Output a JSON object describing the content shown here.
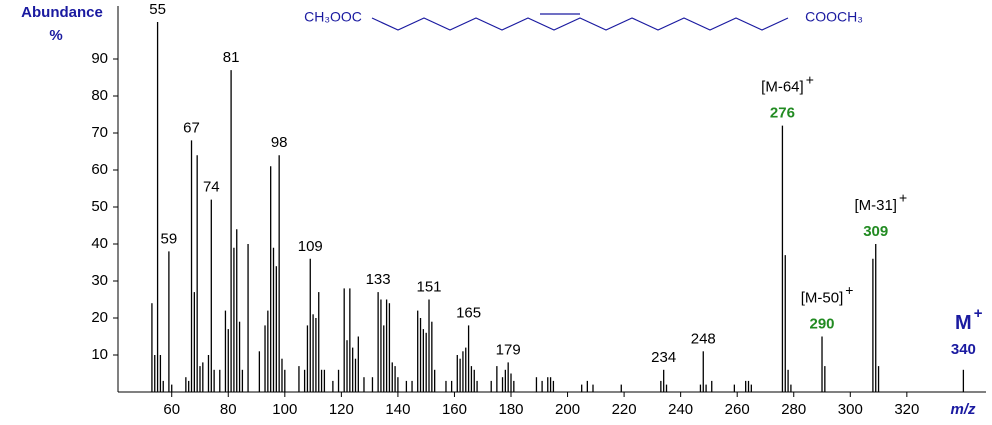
{
  "chart_data": {
    "type": "spectrum",
    "y_label": "Abundance",
    "y_unit": "%",
    "x_label": "m/z",
    "formula_left": "CH₃OOC",
    "formula_right": "COOCH₃",
    "x": [
      53,
      54,
      55,
      56,
      57,
      59,
      60,
      65,
      66,
      67,
      68,
      69,
      70,
      71,
      73,
      74,
      75,
      77,
      79,
      80,
      81,
      82,
      83,
      84,
      85,
      87,
      91,
      93,
      94,
      95,
      96,
      97,
      98,
      99,
      100,
      105,
      107,
      108,
      109,
      110,
      111,
      112,
      113,
      114,
      117,
      119,
      121,
      122,
      123,
      124,
      125,
      126,
      128,
      131,
      133,
      134,
      135,
      136,
      137,
      138,
      139,
      140,
      143,
      145,
      147,
      148,
      149,
      150,
      151,
      152,
      153,
      157,
      159,
      161,
      162,
      163,
      164,
      165,
      166,
      167,
      168,
      173,
      175,
      177,
      178,
      179,
      180,
      181,
      189,
      191,
      193,
      194,
      195,
      205,
      207,
      209,
      219,
      233,
      234,
      235,
      247,
      248,
      249,
      251,
      259,
      263,
      264,
      265,
      276,
      277,
      278,
      279,
      290,
      291,
      308,
      309,
      310,
      340
    ],
    "values": [
      24,
      10,
      100,
      10,
      3,
      38,
      2,
      4,
      3,
      68,
      27,
      64,
      7,
      8,
      10,
      52,
      6,
      6,
      22,
      17,
      87,
      39,
      44,
      19,
      6,
      40,
      11,
      18,
      22,
      61,
      39,
      34,
      64,
      9,
      6,
      7,
      6,
      18,
      36,
      21,
      20,
      27,
      6,
      6,
      3,
      6,
      28,
      14,
      28,
      12,
      9,
      15,
      4,
      4,
      27,
      25,
      18,
      25,
      24,
      8,
      7,
      4,
      3,
      3,
      22,
      20,
      17,
      16,
      25,
      19,
      6,
      3,
      3,
      10,
      9,
      11,
      12,
      18,
      7,
      6,
      3,
      3,
      7,
      4,
      6,
      8,
      5,
      3,
      4,
      3,
      4,
      4,
      3,
      2,
      3,
      2,
      2,
      3,
      6,
      2,
      2,
      11,
      2,
      3,
      2,
      3,
      3,
      2,
      72,
      37,
      6,
      2,
      15,
      7,
      36,
      40,
      7,
      6
    ],
    "color": "#000000",
    "peak_labels": [
      55,
      59,
      67,
      74,
      81,
      98,
      109,
      133,
      151,
      165,
      179,
      234,
      248
    ],
    "ions": [
      {
        "label": "[M-64]",
        "charge": "+",
        "value": 276,
        "color": "#228b22"
      },
      {
        "label": "[M-50]",
        "charge": "+",
        "value": 290,
        "color": "#228b22"
      },
      {
        "label": "[M-31]",
        "charge": "+",
        "value": 309,
        "color": "#228b22"
      },
      {
        "label": "M",
        "charge": "+",
        "value": 340,
        "color": "#1a1aa0"
      }
    ],
    "xlim": [
      41,
      348
    ],
    "ylim": [
      0,
      100
    ],
    "xticks": [
      60,
      80,
      100,
      120,
      140,
      160,
      180,
      200,
      220,
      240,
      260,
      280,
      300,
      320
    ],
    "yticks": [
      10,
      20,
      30,
      40,
      50,
      60,
      70,
      80,
      90
    ]
  }
}
